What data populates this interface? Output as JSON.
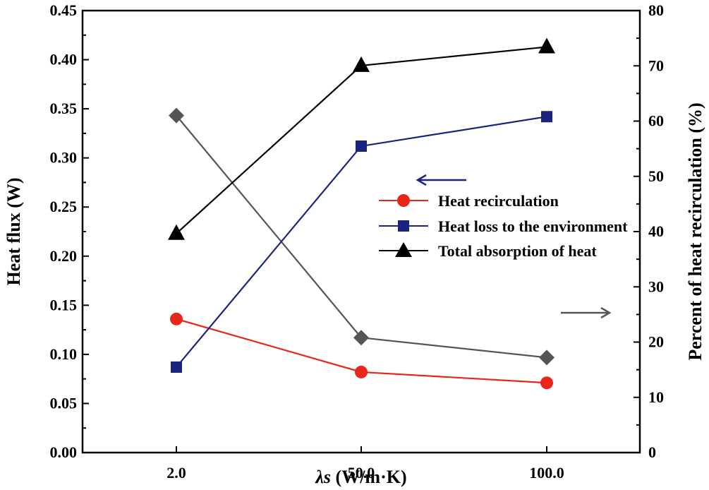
{
  "chart_data": {
    "type": "line",
    "categories": [
      "2.0",
      "50.0",
      "100.0"
    ],
    "xlabel_symbol": "λs",
    "xlabel_unit": " (W/m·K)",
    "ylabel": "Heat flux (W)",
    "y2label": "Percent of heat recirculation (%)",
    "ylim": [
      0,
      0.45
    ],
    "y2lim": [
      0,
      80
    ],
    "yticks": [
      "0.00",
      "0.05",
      "0.10",
      "0.15",
      "0.20",
      "0.25",
      "0.30",
      "0.35",
      "0.40",
      "0.45"
    ],
    "y2ticks": [
      "0",
      "10",
      "20",
      "30",
      "40",
      "50",
      "60",
      "70",
      "80"
    ],
    "series": [
      {
        "name": "Heat recirculation",
        "axis": "left",
        "marker": "circle",
        "color": "#e8261a",
        "values": [
          0.136,
          0.082,
          0.071
        ],
        "in_legend": true
      },
      {
        "name": "Heat loss to the environment",
        "axis": "left",
        "marker": "square",
        "color": "#1a237e",
        "values": [
          0.087,
          0.312,
          0.342
        ],
        "in_legend": true
      },
      {
        "name": "Total absorption of heat",
        "axis": "left",
        "marker": "triangle",
        "color": "#000000",
        "values": [
          0.223,
          0.394,
          0.413
        ],
        "in_legend": true
      },
      {
        "name": "Percent of heat recirculation",
        "axis": "right",
        "marker": "diamond",
        "color": "#555555",
        "values": [
          61.0,
          20.8,
          17.2
        ],
        "in_legend": false
      }
    ],
    "annotations": [
      {
        "type": "arrow",
        "points_to": "left-axis",
        "color": "#1a237e"
      },
      {
        "type": "arrow",
        "points_to": "right-axis",
        "color": "#555555"
      }
    ]
  }
}
